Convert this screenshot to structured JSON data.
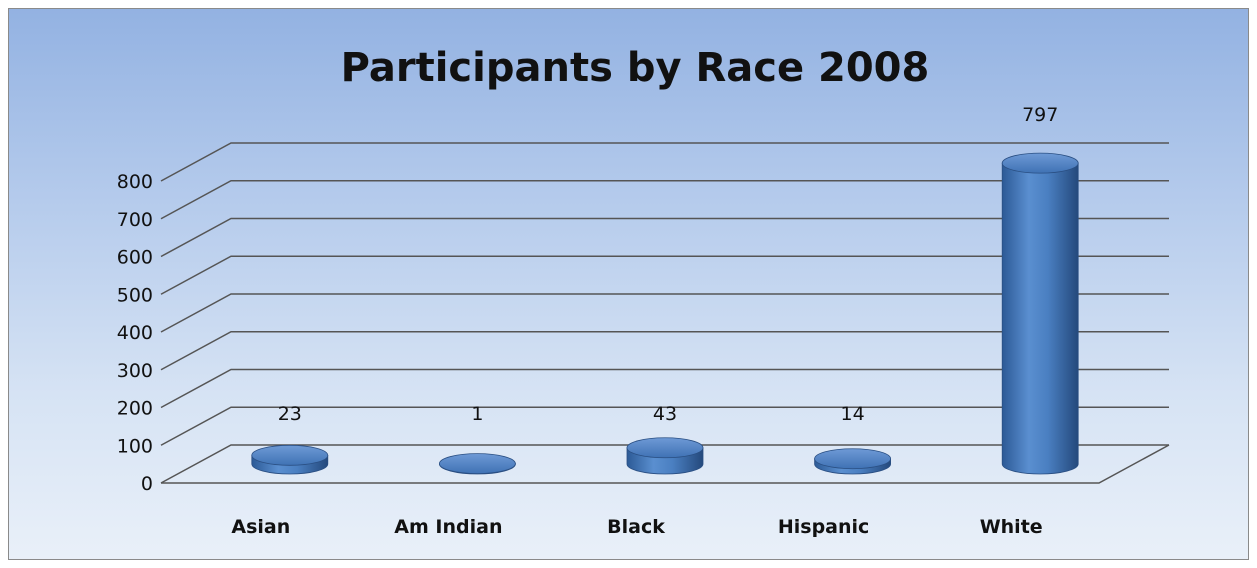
{
  "chart_data": {
    "type": "bar",
    "title": "Participants by Race 2008",
    "categories": [
      "Asian",
      "Am Indian",
      "Black",
      "Hispanic",
      "White"
    ],
    "values": [
      23,
      1,
      43,
      14,
      797
    ],
    "data_labels": [
      "23",
      "1",
      "43",
      "14",
      "797"
    ],
    "yticks": [
      "0",
      "100",
      "200",
      "300",
      "400",
      "500",
      "600",
      "700",
      "800"
    ],
    "ylim": [
      0,
      800
    ],
    "grid": true,
    "legend": "none",
    "style": "3d-cylinder",
    "colors": {
      "bar": "#4a7fc1",
      "background_top": "#93b2e2",
      "background_bottom": "#e9f0f9"
    }
  }
}
